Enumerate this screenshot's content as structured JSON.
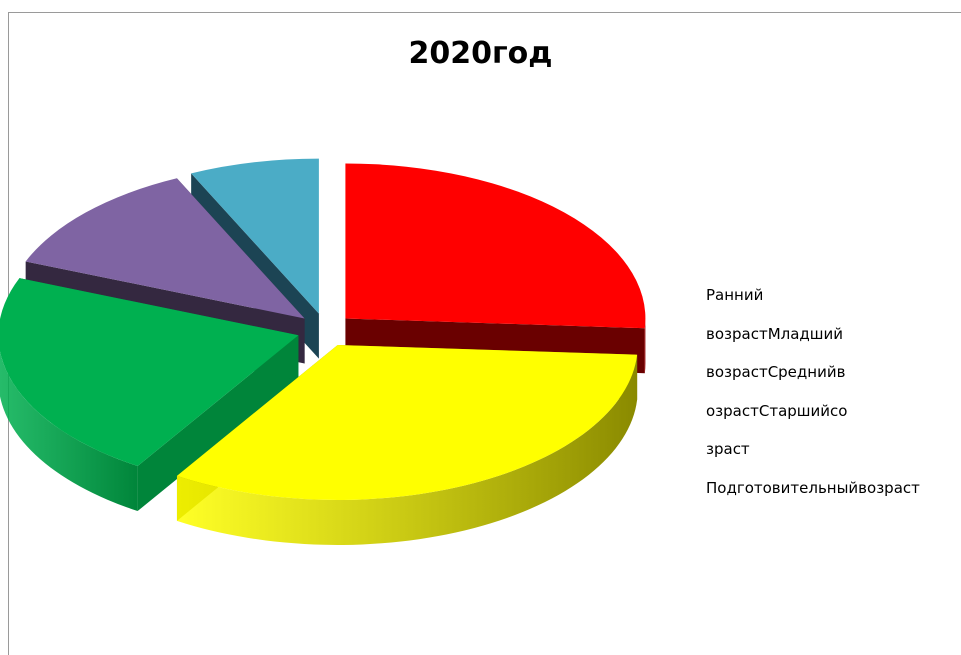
{
  "chart_data": {
    "type": "pie",
    "title": "2020год",
    "legend_lines": [
      "Ранний",
      "возрастМладший",
      "возрастСреднийв",
      "озрастСтаршийсо",
      "зраст",
      "Подготовительныйвозраст"
    ],
    "categories": [
      "Ранний возраст",
      "Младший возраст",
      "Средний возраст",
      "Старший возраст",
      "Подготовительный возраст"
    ],
    "values": [
      26,
      33,
      22,
      12,
      7
    ],
    "colors": [
      "#ff0000",
      "#ffff00",
      "#00b050",
      "#7f64a3",
      "#4bacc6"
    ],
    "side_colors": [
      "#6a0000",
      "#8a8a00",
      "#00853a",
      "#342840",
      "#1c4454"
    ],
    "legend_position": "right",
    "style": "3d-exploded"
  }
}
